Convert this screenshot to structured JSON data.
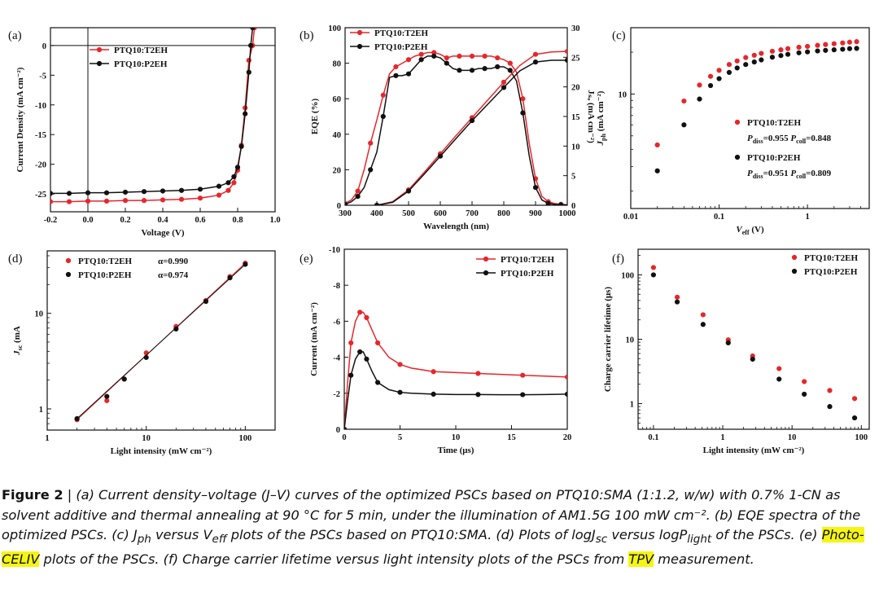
{
  "colors": {
    "t2eh": "#e8262a",
    "p2eh": "#111111",
    "highlight": "#f5f514"
  },
  "chart_data": [
    {
      "id": "a",
      "panel_label": "(a)",
      "type": "line",
      "xlabel": "Voltage (V)",
      "ylabel": "Current Density (mA cm⁻²)",
      "xlim": [
        -0.2,
        1.0
      ],
      "ylim": [
        -28,
        3
      ],
      "xticks": [
        -0.2,
        0.0,
        0.2,
        0.4,
        0.6,
        0.8,
        1.0
      ],
      "xtick_labels": [
        "-0.2",
        "0.0",
        "0.2",
        "0.4",
        "0.6",
        "0.8",
        "1.0"
      ],
      "yticks": [
        0,
        -5,
        -10,
        -15,
        -20,
        -25
      ],
      "ytick_labels": [
        "0",
        "-5",
        "-10",
        "-15",
        "-20",
        "-25"
      ],
      "legend": "top-left",
      "series": [
        {
          "name": "PTQ10:T2EH",
          "color_key": "t2eh",
          "x": [
            -0.2,
            -0.1,
            0.0,
            0.1,
            0.2,
            0.3,
            0.4,
            0.5,
            0.6,
            0.7,
            0.75,
            0.78,
            0.8,
            0.82,
            0.84,
            0.86,
            0.88,
            0.89
          ],
          "y": [
            -26.3,
            -26.3,
            -26.2,
            -26.2,
            -26.1,
            -26.1,
            -26.0,
            -25.9,
            -25.7,
            -25.2,
            -24.4,
            -23.1,
            -21.0,
            -16.8,
            -10.5,
            -2.5,
            0,
            3
          ]
        },
        {
          "name": "PTQ10:P2EH",
          "color_key": "p2eh",
          "x": [
            -0.2,
            -0.1,
            0.0,
            0.1,
            0.2,
            0.3,
            0.4,
            0.5,
            0.6,
            0.7,
            0.75,
            0.78,
            0.8,
            0.82,
            0.84,
            0.86,
            0.87,
            0.88
          ],
          "y": [
            -24.9,
            -24.9,
            -24.8,
            -24.8,
            -24.7,
            -24.6,
            -24.5,
            -24.4,
            -24.2,
            -23.7,
            -23.1,
            -22.1,
            -20.5,
            -17.0,
            -11.5,
            -4.5,
            0,
            3
          ]
        }
      ]
    },
    {
      "id": "b",
      "panel_label": "(b)",
      "type": "line",
      "xlabel": "Wavelength (nm)",
      "ylabel": "EQE (%)",
      "ylabel_right": "Jₛₒ (mA cm⁻²)",
      "xlim": [
        300,
        1000
      ],
      "ylim": [
        0,
        100
      ],
      "ylim_right": [
        0,
        30
      ],
      "xticks": [
        300,
        400,
        500,
        600,
        700,
        800,
        900,
        1000
      ],
      "xtick_labels": [
        "300",
        "400",
        "500",
        "600",
        "700",
        "800",
        "900",
        "1000"
      ],
      "yticks": [
        0,
        20,
        40,
        60,
        80,
        100
      ],
      "ytick_labels": [
        "0",
        "20",
        "40",
        "60",
        "80",
        "100"
      ],
      "yticks_right": [
        0,
        5,
        10,
        15,
        20,
        25,
        30
      ],
      "ytick_labels_right": [
        "0",
        "5",
        "10",
        "15",
        "20",
        "25",
        "30"
      ],
      "legend": "top-left",
      "series": [
        {
          "name": "PTQ10:T2EH",
          "color_key": "t2eh",
          "axis": "left",
          "x": [
            300,
            320,
            340,
            360,
            380,
            400,
            420,
            440,
            460,
            480,
            500,
            520,
            540,
            560,
            580,
            600,
            620,
            640,
            660,
            680,
            700,
            720,
            740,
            760,
            780,
            800,
            820,
            840,
            860,
            880,
            900,
            920,
            940,
            960,
            980,
            1000
          ],
          "y": [
            1,
            3,
            8,
            20,
            35,
            48,
            62,
            74,
            78,
            80,
            82,
            84,
            85,
            86,
            86,
            85,
            83,
            84,
            84,
            84,
            84,
            84,
            84,
            84,
            83,
            82,
            80,
            75,
            60,
            35,
            15,
            5,
            2,
            1,
            0.5,
            0.3
          ]
        },
        {
          "name": "PTQ10:P2EH",
          "color_key": "p2eh",
          "axis": "left",
          "x": [
            300,
            320,
            340,
            360,
            380,
            400,
            420,
            440,
            460,
            480,
            500,
            520,
            540,
            560,
            580,
            600,
            620,
            640,
            660,
            680,
            700,
            720,
            740,
            760,
            780,
            800,
            820,
            840,
            860,
            880,
            900,
            920,
            940,
            960,
            980,
            1000
          ],
          "y": [
            0.5,
            2,
            5,
            10,
            20,
            30,
            50,
            72,
            73,
            73,
            74,
            78,
            82,
            84,
            84,
            83,
            80,
            77,
            76,
            76,
            76,
            77,
            77,
            77,
            78,
            78,
            76,
            70,
            52,
            28,
            10,
            3,
            1,
            0.5,
            0.3,
            0.2
          ]
        },
        {
          "name": "",
          "color_key": "t2eh",
          "axis": "right",
          "x": [
            400,
            450,
            500,
            550,
            600,
            650,
            700,
            750,
            800,
            850,
            900,
            950,
            1000
          ],
          "y": [
            0,
            0.6,
            2.6,
            5.6,
            8.7,
            11.8,
            14.8,
            17.8,
            20.8,
            23.6,
            25.5,
            25.9,
            26.0
          ]
        },
        {
          "name": "",
          "color_key": "p2eh",
          "axis": "right",
          "x": [
            400,
            450,
            500,
            550,
            600,
            650,
            700,
            750,
            800,
            850,
            900,
            950,
            1000
          ],
          "y": [
            0,
            0.5,
            2.4,
            5.3,
            8.3,
            11.3,
            14.3,
            17.1,
            19.9,
            22.7,
            24.2,
            24.5,
            24.5
          ]
        }
      ]
    },
    {
      "id": "c",
      "panel_label": "(c)",
      "type": "scatter",
      "xlabel": "V_eff (V)",
      "ylabel": "J_ph (mA cm⁻²)",
      "xscale": "log",
      "yscale": "log",
      "xlim": [
        0.01,
        5
      ],
      "ylim": [
        1.5,
        30
      ],
      "xticks": [
        0.01,
        0.1,
        1
      ],
      "xtick_labels": [
        "0.01",
        "0.1",
        "1"
      ],
      "yticks": [
        10
      ],
      "ytick_labels": [
        "10"
      ],
      "legend": "right",
      "annotations": [
        "P_diss=0.955 P_coll=0.848",
        "P_diss=0.951 P_coll=0.809"
      ],
      "series": [
        {
          "name": "PTQ10:T2EH",
          "color_key": "t2eh",
          "x": [
            0.02,
            0.04,
            0.06,
            0.08,
            0.1,
            0.13,
            0.16,
            0.2,
            0.25,
            0.3,
            0.4,
            0.5,
            0.6,
            0.8,
            1.0,
            1.3,
            1.6,
            2.0,
            2.5,
            3.0,
            3.6
          ],
          "y": [
            4.3,
            8.9,
            11.6,
            13.4,
            14.8,
            16.3,
            17.3,
            18.3,
            19.0,
            19.6,
            20.3,
            20.8,
            21.2,
            21.7,
            22.0,
            22.4,
            22.7,
            23.0,
            23.3,
            23.6,
            23.8
          ]
        },
        {
          "name": "PTQ10:P2EH",
          "color_key": "p2eh",
          "x": [
            0.02,
            0.04,
            0.06,
            0.08,
            0.1,
            0.13,
            0.16,
            0.2,
            0.25,
            0.3,
            0.4,
            0.5,
            0.6,
            0.8,
            1.0,
            1.3,
            1.6,
            2.0,
            2.5,
            3.0,
            3.6
          ],
          "y": [
            2.8,
            6.0,
            9.2,
            11.5,
            12.9,
            14.3,
            15.4,
            16.3,
            17.0,
            17.6,
            18.4,
            18.9,
            19.3,
            19.8,
            20.1,
            20.4,
            20.6,
            20.8,
            21.0,
            21.2,
            21.3
          ]
        }
      ]
    },
    {
      "id": "d",
      "panel_label": "(d)",
      "type": "scatter",
      "xlabel": "Light intensity (mW cm⁻²)",
      "ylabel": "J_sc (mA",
      "xscale": "log",
      "yscale": "log",
      "xlim": [
        1,
        200
      ],
      "ylim": [
        0.6,
        45
      ],
      "xticks": [
        1,
        10,
        100
      ],
      "xtick_labels": [
        "1",
        "10",
        "100"
      ],
      "yticks": [
        1,
        10
      ],
      "ytick_labels": [
        "1",
        "10"
      ],
      "legend": "top-left",
      "series": [
        {
          "name": "PTQ10:T2EH",
          "alpha": "α=0.990",
          "color_key": "t2eh",
          "x": [
            2,
            4,
            6,
            10,
            20,
            40,
            70,
            100
          ],
          "y": [
            0.77,
            1.22,
            2.05,
            3.85,
            7.3,
            13.6,
            24.2,
            33.5
          ]
        },
        {
          "name": "PTQ10:P2EH",
          "alpha": "α=0.974",
          "color_key": "p2eh",
          "x": [
            2,
            4,
            6,
            10,
            20,
            40,
            70,
            100
          ],
          "y": [
            0.79,
            1.35,
            2.05,
            3.45,
            6.85,
            13.3,
            23.5,
            32.5
          ]
        }
      ]
    },
    {
      "id": "e",
      "panel_label": "(e)",
      "type": "line",
      "xlabel": "Time (μs)",
      "ylabel": "Current (mA cm⁻²)",
      "xlim": [
        0,
        20
      ],
      "ylim": [
        0,
        -10
      ],
      "xticks": [
        0,
        5,
        10,
        15,
        20
      ],
      "xtick_labels": [
        "0",
        "5",
        "10",
        "15",
        "20"
      ],
      "yticks": [
        0,
        -2,
        -4,
        -6,
        -8,
        -10
      ],
      "ytick_labels": [
        "0",
        "-2",
        "-4",
        "-6",
        "-8",
        "-10"
      ],
      "legend": "top-right",
      "series": [
        {
          "name": "PTQ10:T2EH",
          "color_key": "t2eh",
          "x": [
            0,
            0.3,
            0.6,
            1.0,
            1.4,
            1.7,
            2.0,
            2.5,
            3.0,
            4.0,
            5.0,
            6.0,
            8.0,
            10.0,
            12.0,
            14.0,
            16.0,
            18.0,
            20.0
          ],
          "y": [
            0,
            -2.6,
            -4.8,
            -6.0,
            -6.5,
            -6.5,
            -6.2,
            -5.5,
            -4.8,
            -4.0,
            -3.6,
            -3.4,
            -3.2,
            -3.15,
            -3.1,
            -3.05,
            -3.0,
            -2.95,
            -2.9
          ]
        },
        {
          "name": "PTQ10:P2EH",
          "color_key": "p2eh",
          "x": [
            0,
            0.3,
            0.6,
            1.0,
            1.4,
            1.7,
            2.0,
            2.5,
            3.0,
            4.0,
            5.0,
            6.0,
            8.0,
            10.0,
            12.0,
            14.0,
            16.0,
            18.0,
            20.0
          ],
          "y": [
            0,
            -1.6,
            -3.0,
            -3.9,
            -4.3,
            -4.3,
            -3.9,
            -3.2,
            -2.6,
            -2.2,
            -2.05,
            -2.0,
            -1.95,
            -1.93,
            -1.93,
            -1.92,
            -1.92,
            -1.93,
            -1.95
          ]
        }
      ]
    },
    {
      "id": "f",
      "panel_label": "(f)",
      "type": "scatter",
      "xlabel": "Light intensity (mW cm⁻²)",
      "ylabel": "Charge carrier lifetime (μs)",
      "xscale": "log",
      "yscale": "log",
      "xlim": [
        0.06,
        130
      ],
      "ylim": [
        0.4,
        250
      ],
      "xticks": [
        0.1,
        1,
        10,
        100
      ],
      "xtick_labels": [
        "0.1",
        "1",
        "10",
        "100"
      ],
      "yticks": [
        1,
        10,
        100
      ],
      "ytick_labels": [
        "1",
        "10",
        "100"
      ],
      "legend": "top-right",
      "series": [
        {
          "name": "PTQ10:T2EH",
          "color_key": "t2eh",
          "x": [
            0.1,
            0.22,
            0.52,
            1.2,
            2.7,
            6.5,
            15,
            35,
            80
          ],
          "y": [
            130,
            45,
            24,
            9.8,
            5.5,
            3.5,
            2.2,
            1.6,
            1.2
          ]
        },
        {
          "name": "PTQ10:P2EH",
          "color_key": "p2eh",
          "x": [
            0.1,
            0.22,
            0.52,
            1.2,
            2.7,
            6.5,
            15,
            35,
            80
          ],
          "y": [
            100,
            38,
            17,
            8.8,
            4.9,
            2.4,
            1.4,
            0.9,
            0.6
          ]
        }
      ]
    }
  ],
  "caption": {
    "lead": "Figure 2",
    "bar": " | ",
    "part1": "(a) Current density–voltage (J–V) curves of the optimized PSCs based on PTQ10:SMA (1:1.2, w/w) with 0.7% 1-CN as solvent additive and thermal annealing at 90 °C for 5 min, under the illumination of AM1.5G 100 mW cm⁻². (b) EQE spectra of the optimized PSCs. (c) J",
    "sub_ph": "ph",
    "part2": " versus V",
    "sub_eff": "eff",
    "part3": " plots of the PSCs based on PTQ10:SMA. (d) Plots of logJ",
    "sub_sc": "sc",
    "part4": " versus logP",
    "sub_light": "light",
    "part5": " of the PSCs. (e) ",
    "hl1": "Photo-CELIV",
    "part6": " plots of the PSCs. (f) Charge carrier lifetime versus light intensity plots of the PSCs from ",
    "hl2": "TPV",
    "part7": " measurement."
  }
}
